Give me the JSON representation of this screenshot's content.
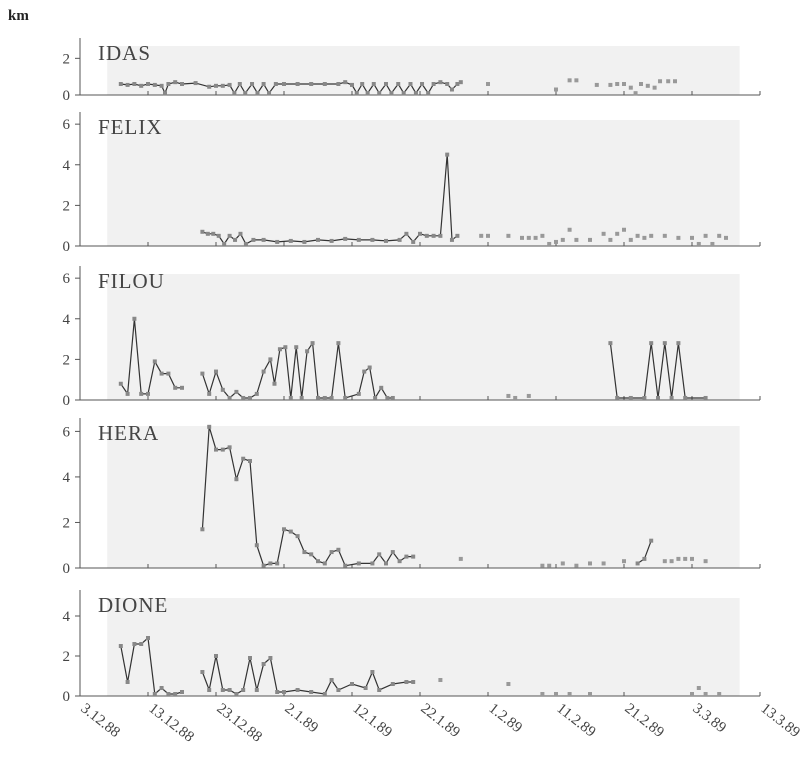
{
  "figure": {
    "unit_label": "km",
    "x_tick_labels": [
      "3.12.88",
      "13.12.88",
      "23.12.88",
      "2.1.89",
      "12.1.89",
      "22.1.89",
      "1.2.89",
      "11.2.89",
      "21.2.89",
      "3.3.89",
      "13.3.89"
    ],
    "x_tick_days": [
      0,
      10,
      20,
      30,
      40,
      50,
      60,
      70,
      80,
      90,
      100
    ]
  },
  "chart_data": [
    {
      "type": "line",
      "title": "IDAS",
      "ylabel": "km",
      "ylim": [
        0,
        3
      ],
      "yticks": [
        0,
        2
      ],
      "x_axis": "days since 3.12.88",
      "series": [
        {
          "points": [
            [
              6,
              0.6
            ],
            [
              7,
              0.55
            ],
            [
              8,
              0.6
            ],
            [
              9,
              0.5
            ],
            [
              10,
              0.6
            ],
            [
              11,
              0.55
            ],
            [
              12,
              0.5
            ],
            [
              12.5,
              0.1
            ],
            [
              13,
              0.6
            ],
            [
              14,
              0.7
            ],
            [
              15,
              0.6
            ],
            [
              17,
              0.65
            ],
            [
              19,
              0.45
            ],
            [
              20,
              0.5
            ],
            [
              21,
              0.5
            ],
            [
              22,
              0.55
            ],
            [
              22.7,
              0.1
            ],
            [
              23.5,
              0.6
            ],
            [
              24.3,
              0.1
            ],
            [
              25.3,
              0.6
            ],
            [
              26.1,
              0.1
            ],
            [
              27,
              0.6
            ],
            [
              27.8,
              0.1
            ],
            [
              28.8,
              0.6
            ],
            [
              30,
              0.6
            ],
            [
              32,
              0.6
            ],
            [
              34,
              0.6
            ],
            [
              36,
              0.6
            ],
            [
              38,
              0.6
            ],
            [
              39,
              0.7
            ],
            [
              40,
              0.55
            ],
            [
              40.7,
              0.1
            ],
            [
              41.5,
              0.6
            ],
            [
              42.3,
              0.1
            ],
            [
              43.2,
              0.6
            ],
            [
              44,
              0.1
            ],
            [
              45,
              0.6
            ],
            [
              45.8,
              0.1
            ],
            [
              46.8,
              0.6
            ],
            [
              47.6,
              0.1
            ],
            [
              48.6,
              0.6
            ],
            [
              49.4,
              0.1
            ],
            [
              50.3,
              0.6
            ],
            [
              51.2,
              0.1
            ],
            [
              52,
              0.6
            ],
            [
              53,
              0.7
            ],
            [
              54,
              0.6
            ],
            [
              54.7,
              0.3
            ],
            [
              55.5,
              0.6
            ],
            [
              56,
              0.7
            ]
          ]
        }
      ],
      "isolated_points": [
        [
          60,
          0.6
        ],
        [
          70,
          0.3
        ],
        [
          72,
          0.8
        ],
        [
          73,
          0.8
        ],
        [
          76,
          0.55
        ],
        [
          78,
          0.55
        ],
        [
          79,
          0.6
        ],
        [
          80,
          0.6
        ],
        [
          81,
          0.4
        ],
        [
          81.7,
          0.1
        ],
        [
          82.5,
          0.6
        ],
        [
          83.5,
          0.5
        ],
        [
          84.5,
          0.4
        ],
        [
          85.3,
          0.75
        ],
        [
          86.5,
          0.75
        ],
        [
          87.5,
          0.75
        ]
      ]
    },
    {
      "type": "line",
      "title": "FELIX",
      "ylabel": "km",
      "ylim": [
        0,
        6.5
      ],
      "yticks": [
        0,
        2,
        4,
        6
      ],
      "x_axis": "days since 3.12.88",
      "series": [
        {
          "points": [
            [
              18,
              0.7
            ],
            [
              18.8,
              0.6
            ],
            [
              19.6,
              0.6
            ],
            [
              20.4,
              0.5
            ],
            [
              21.2,
              0.1
            ],
            [
              22,
              0.5
            ],
            [
              22.8,
              0.3
            ],
            [
              23.6,
              0.6
            ],
            [
              24.4,
              0.1
            ],
            [
              25.5,
              0.3
            ],
            [
              27,
              0.3
            ],
            [
              29,
              0.2
            ],
            [
              31,
              0.25
            ],
            [
              33,
              0.2
            ],
            [
              35,
              0.3
            ],
            [
              37,
              0.25
            ],
            [
              39,
              0.35
            ],
            [
              41,
              0.3
            ],
            [
              43,
              0.3
            ],
            [
              45,
              0.25
            ],
            [
              47,
              0.3
            ],
            [
              48,
              0.6
            ],
            [
              49,
              0.2
            ],
            [
              50,
              0.6
            ],
            [
              51,
              0.5
            ],
            [
              52,
              0.5
            ],
            [
              53,
              0.5
            ],
            [
              54,
              4.5
            ],
            [
              54.7,
              0.3
            ],
            [
              55.5,
              0.5
            ]
          ]
        }
      ],
      "isolated_points": [
        [
          59,
          0.5
        ],
        [
          60,
          0.5
        ],
        [
          63,
          0.5
        ],
        [
          65,
          0.4
        ],
        [
          66,
          0.4
        ],
        [
          67,
          0.4
        ],
        [
          68,
          0.5
        ],
        [
          69,
          0.1
        ],
        [
          70,
          0.2
        ],
        [
          71,
          0.3
        ],
        [
          72,
          0.8
        ],
        [
          73,
          0.3
        ],
        [
          75,
          0.3
        ],
        [
          77,
          0.6
        ],
        [
          78,
          0.3
        ],
        [
          79,
          0.6
        ],
        [
          80,
          0.8
        ],
        [
          81,
          0.3
        ],
        [
          82,
          0.5
        ],
        [
          83,
          0.4
        ],
        [
          84,
          0.5
        ],
        [
          86,
          0.5
        ],
        [
          88,
          0.4
        ],
        [
          90,
          0.4
        ],
        [
          91,
          0.1
        ],
        [
          92,
          0.5
        ],
        [
          93,
          0.1
        ],
        [
          94,
          0.5
        ],
        [
          95,
          0.4
        ]
      ]
    },
    {
      "type": "line",
      "title": "FILOU",
      "ylabel": "km",
      "ylim": [
        0,
        6.5
      ],
      "yticks": [
        0,
        2,
        4,
        6
      ],
      "x_axis": "days since 3.12.88",
      "series": [
        {
          "points": [
            [
              6,
              0.8
            ],
            [
              7,
              0.3
            ],
            [
              8,
              4
            ],
            [
              9,
              0.3
            ],
            [
              10,
              0.3
            ],
            [
              11,
              1.9
            ],
            [
              12,
              1.3
            ],
            [
              13,
              1.3
            ],
            [
              14,
              0.6
            ],
            [
              15,
              0.6
            ]
          ]
        },
        {
          "points": [
            [
              18,
              1.3
            ],
            [
              19,
              0.3
            ],
            [
              20,
              1.4
            ],
            [
              21,
              0.5
            ],
            [
              22,
              0.1
            ],
            [
              23,
              0.4
            ],
            [
              24,
              0.1
            ],
            [
              25,
              0.1
            ],
            [
              26,
              0.3
            ],
            [
              27,
              1.4
            ],
            [
              28,
              2
            ],
            [
              28.6,
              0.8
            ],
            [
              29.4,
              2.5
            ],
            [
              30.2,
              2.6
            ],
            [
              31,
              0.1
            ],
            [
              31.8,
              2.6
            ],
            [
              32.6,
              0.1
            ],
            [
              33.4,
              2.4
            ],
            [
              34.2,
              2.8
            ],
            [
              35,
              0.1
            ],
            [
              36,
              0.1
            ],
            [
              37,
              0.1
            ],
            [
              38,
              2.8
            ],
            [
              39,
              0.1
            ],
            [
              41,
              0.3
            ],
            [
              41.8,
              1.4
            ],
            [
              42.6,
              1.6
            ],
            [
              43.4,
              0.1
            ],
            [
              44.3,
              0.6
            ],
            [
              45.2,
              0.1
            ],
            [
              46,
              0.1
            ]
          ]
        },
        {
          "points": [
            [
              78,
              2.8
            ],
            [
              79,
              0.1
            ],
            [
              81,
              0.1
            ],
            [
              83,
              0.1
            ],
            [
              84,
              2.8
            ],
            [
              85,
              0.1
            ],
            [
              86,
              2.8
            ],
            [
              87,
              0.1
            ],
            [
              88,
              2.8
            ],
            [
              89,
              0.1
            ],
            [
              92,
              0.1
            ]
          ]
        }
      ],
      "isolated_points": [
        [
          63,
          0.2
        ],
        [
          64,
          0.1
        ],
        [
          66,
          0.2
        ]
      ]
    },
    {
      "type": "line",
      "title": "HERA",
      "ylabel": "km",
      "ylim": [
        0,
        6.5
      ],
      "yticks": [
        0,
        2,
        4,
        6
      ],
      "x_axis": "days since 3.12.88",
      "series": [
        {
          "points": [
            [
              18,
              1.7
            ],
            [
              19,
              6.2
            ],
            [
              20,
              5.2
            ],
            [
              21,
              5.2
            ],
            [
              22,
              5.3
            ],
            [
              23,
              3.9
            ],
            [
              24,
              4.8
            ],
            [
              25,
              4.7
            ],
            [
              26,
              1.0
            ],
            [
              27,
              0.1
            ],
            [
              28,
              0.2
            ],
            [
              29,
              0.2
            ],
            [
              30,
              1.7
            ],
            [
              31,
              1.6
            ],
            [
              32,
              1.4
            ],
            [
              33,
              0.7
            ],
            [
              34,
              0.6
            ],
            [
              35,
              0.3
            ],
            [
              36,
              0.2
            ],
            [
              37,
              0.7
            ],
            [
              38,
              0.8
            ],
            [
              39,
              0.1
            ],
            [
              41,
              0.2
            ],
            [
              43,
              0.2
            ],
            [
              44,
              0.6
            ],
            [
              45,
              0.2
            ],
            [
              46,
              0.7
            ],
            [
              47,
              0.3
            ],
            [
              48,
              0.5
            ],
            [
              49,
              0.5
            ]
          ]
        },
        {
          "points": [
            [
              82,
              0.2
            ],
            [
              83,
              0.4
            ],
            [
              84,
              1.2
            ]
          ]
        }
      ],
      "isolated_points": [
        [
          56,
          0.4
        ],
        [
          68,
          0.1
        ],
        [
          69,
          0.1
        ],
        [
          71,
          0.2
        ],
        [
          73,
          0.1
        ],
        [
          75,
          0.2
        ],
        [
          77,
          0.2
        ],
        [
          80,
          0.3
        ],
        [
          86,
          0.3
        ],
        [
          87,
          0.3
        ],
        [
          88,
          0.4
        ],
        [
          89,
          0.4
        ],
        [
          90,
          0.4
        ],
        [
          92,
          0.3
        ]
      ]
    },
    {
      "type": "line",
      "title": "DIONE",
      "ylabel": "km",
      "ylim": [
        0,
        5.2
      ],
      "yticks": [
        0,
        2,
        4
      ],
      "x_axis": "days since 3.12.88",
      "series": [
        {
          "points": [
            [
              6,
              2.5
            ],
            [
              7,
              0.7
            ],
            [
              8,
              2.6
            ],
            [
              9,
              2.6
            ],
            [
              10,
              2.9
            ],
            [
              11,
              0.1
            ],
            [
              12,
              0.4
            ],
            [
              13,
              0.1
            ],
            [
              14,
              0.1
            ],
            [
              15,
              0.2
            ]
          ]
        },
        {
          "points": [
            [
              18,
              1.2
            ],
            [
              19,
              0.3
            ],
            [
              20,
              2.0
            ],
            [
              21,
              0.3
            ],
            [
              22,
              0.3
            ],
            [
              23,
              0.1
            ],
            [
              24,
              0.3
            ],
            [
              25,
              1.9
            ],
            [
              26,
              0.3
            ],
            [
              27,
              1.6
            ],
            [
              28,
              1.9
            ],
            [
              29,
              0.2
            ],
            [
              30,
              0.2
            ],
            [
              32,
              0.3
            ],
            [
              34,
              0.2
            ],
            [
              36,
              0.1
            ],
            [
              37,
              0.8
            ],
            [
              38,
              0.3
            ],
            [
              40,
              0.6
            ],
            [
              42,
              0.4
            ],
            [
              43,
              1.2
            ],
            [
              44,
              0.3
            ],
            [
              46,
              0.6
            ],
            [
              48,
              0.7
            ],
            [
              49,
              0.7
            ]
          ]
        }
      ],
      "isolated_points": [
        [
          53,
          0.8
        ],
        [
          63,
          0.6
        ],
        [
          68,
          0.1
        ],
        [
          70,
          0.1
        ],
        [
          72,
          0.1
        ],
        [
          75,
          0.1
        ],
        [
          90,
          0.1
        ],
        [
          91,
          0.4
        ],
        [
          92,
          0.1
        ],
        [
          94,
          0.1
        ]
      ]
    }
  ]
}
